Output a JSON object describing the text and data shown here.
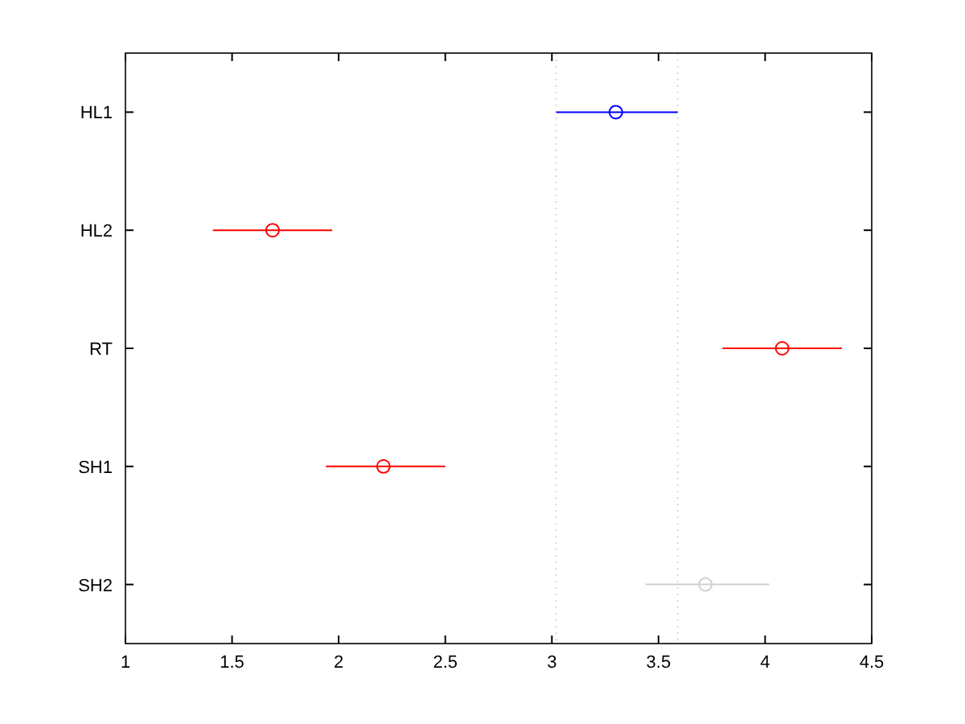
{
  "chart_data": {
    "type": "scatter",
    "orientation": "horizontal",
    "categories": [
      "HL1",
      "HL2",
      "RT",
      "SH1",
      "SH2"
    ],
    "values": [
      3.3,
      1.69,
      4.08,
      2.21,
      3.72
    ],
    "errors": [
      [
        3.02,
        3.59
      ],
      [
        1.41,
        1.97
      ],
      [
        3.8,
        4.36
      ],
      [
        1.94,
        2.5
      ],
      [
        3.44,
        4.02
      ]
    ],
    "colors": [
      "#0000ff",
      "#ff0000",
      "#ff0000",
      "#ff0000",
      "#d0d0d0"
    ],
    "marker": "circle",
    "xlim": [
      1,
      4.5
    ],
    "xticks": [
      1,
      1.5,
      2,
      2.5,
      3,
      3.5,
      4,
      4.5
    ],
    "ref_lines": [
      {
        "axis": "x",
        "value": 3.02,
        "color": "#d8d8d8",
        "line_style": "dotted"
      },
      {
        "axis": "x",
        "value": 3.59,
        "color": "#d8d8d8",
        "line_style": "dotted"
      }
    ],
    "grid": false
  }
}
